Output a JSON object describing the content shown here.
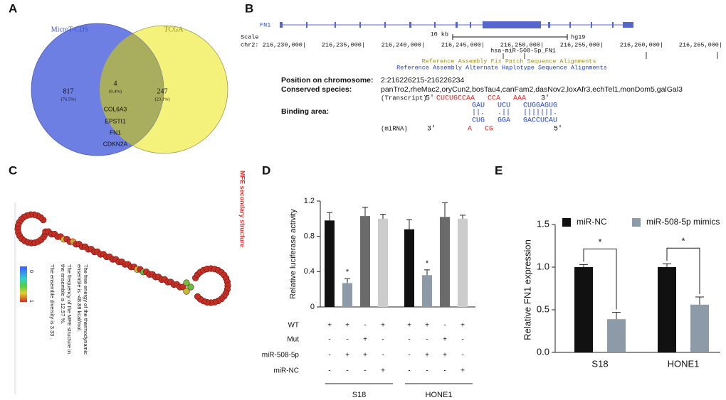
{
  "panels": {
    "a": "A",
    "b": "B",
    "c": "C",
    "d": "D",
    "e": "E"
  },
  "venn": {
    "left": {
      "name": "MicroT-CDS",
      "count": 817,
      "percent": "(76.5%)"
    },
    "right": {
      "name": "TCGA",
      "count": 247,
      "percent": "(23.1%)"
    },
    "shared": {
      "count": 4,
      "percent": "(0.4%)",
      "genes": [
        "COL6A3",
        "EPSTI1",
        "FN1",
        "CDKN2A"
      ]
    }
  },
  "genome": {
    "gene": "FN1",
    "scale_label": "Scale",
    "scale": "10 kb",
    "assembly": "hg19",
    "chrom": "chr2:",
    "positions": [
      "216,230,000|",
      "216,235,000|",
      "216,240,000|",
      "216,245,000|",
      "216,250,000|",
      "216,255,000|",
      "216,260,000|",
      "216,265,000|"
    ],
    "mirna_track": "hsa-miR-508-5p_FN1",
    "tracks": [
      "Reference Assembly Fix Patch Sequence Alignments",
      "Reference Assembly Alternate Haplotype Sequence Alignments"
    ]
  },
  "binding": {
    "position_label": "Position on chromosome:",
    "position": "2:216226215-216226234",
    "species_label": "Conserved species:",
    "species": "panTro2,rheMac2,oryCun2,bosTau4,canFam2,dasNov2,loxAfr3,echTel1,monDom5,galGal3",
    "binding_label": "Binding area:",
    "transcript_label": "(Transcript)",
    "transcript_5": "5'",
    "transcript_seq": "CUCUGCCAA   CCA   AAA",
    "transcript_3": "3'",
    "pair_top": "GAU   UCU   CUGGAGUG",
    "pair_bonds": "||.   .||   |||||||.",
    "pair_bottom": "CUG   GGA   GACCUCAU",
    "mirna_label": "(miRNA)",
    "mirna_3": "3'",
    "mirna_seq": "A   CG",
    "mirna_5": "5'"
  },
  "structure": {
    "title": "MFE secondary structure",
    "scale_min": "0",
    "scale_max": "1",
    "notes": [
      "The free energy of the thermodynamic",
      "ensemble is -48.88 kcal/mol.",
      "The frequency of the MFE structure in",
      "the ensemble is 12.57 %.",
      "The ensemble diversity is 3.33 ."
    ]
  },
  "chart_data": [
    {
      "type": "bar",
      "ylabel": "Relative luciferase activity",
      "ylim": [
        0,
        1.2
      ],
      "yticks": [
        0,
        0.4,
        0.8,
        1.2
      ],
      "values": [
        0.98,
        0.27,
        1.03,
        1.0,
        0.88,
        0.36,
        1.02,
        1.0
      ],
      "errors": [
        0.09,
        0.05,
        0.1,
        0.05,
        0.11,
        0.06,
        0.16,
        0.04
      ],
      "colors": [
        "#111111",
        "#8d9aa8",
        "#6b6b6b",
        "#cccccc",
        "#111111",
        "#8d9aa8",
        "#6b6b6b",
        "#cccccc"
      ],
      "annotations": [
        {
          "text": "*",
          "index": 1
        },
        {
          "text": "*",
          "index": 5
        }
      ],
      "conditions": [
        {
          "name": "WT",
          "signs": [
            "+",
            "+",
            "-",
            "+",
            "+",
            "+",
            "-",
            "+"
          ]
        },
        {
          "name": "Mut",
          "signs": [
            "-",
            "-",
            "+",
            "-",
            "-",
            "-",
            "+",
            "-"
          ]
        },
        {
          "name": "miR-508-5p",
          "signs": [
            "-",
            "+",
            "+",
            "-",
            "-",
            "+",
            "+",
            "-"
          ]
        },
        {
          "name": "miR-NC",
          "signs": [
            "-",
            "-",
            "-",
            "+",
            "-",
            "-",
            "-",
            "+"
          ]
        }
      ],
      "groups": [
        "S18",
        "HONE1"
      ]
    },
    {
      "type": "bar",
      "ylabel": "Relative FN1 expression",
      "categories": [
        "S18",
        "HONE1"
      ],
      "series": [
        {
          "name": "miR-NC",
          "color": "#111111",
          "values": [
            1.0,
            1.0
          ],
          "errors": [
            0.03,
            0.04
          ]
        },
        {
          "name": "miR-508-5p mimics",
          "color": "#8d9aa8",
          "values": [
            0.39,
            0.56
          ],
          "errors": [
            0.08,
            0.09
          ]
        }
      ],
      "ylim": [
        0,
        1.5
      ],
      "yticks": [
        {
          "value": 0,
          "label": "0.0"
        },
        0.5,
        {
          "value": 1,
          "label": "1.0"
        },
        1.5
      ],
      "legend": "top",
      "annotations": [
        {
          "text": "*",
          "category": 0
        },
        {
          "text": "*",
          "category": 1
        }
      ]
    }
  ]
}
